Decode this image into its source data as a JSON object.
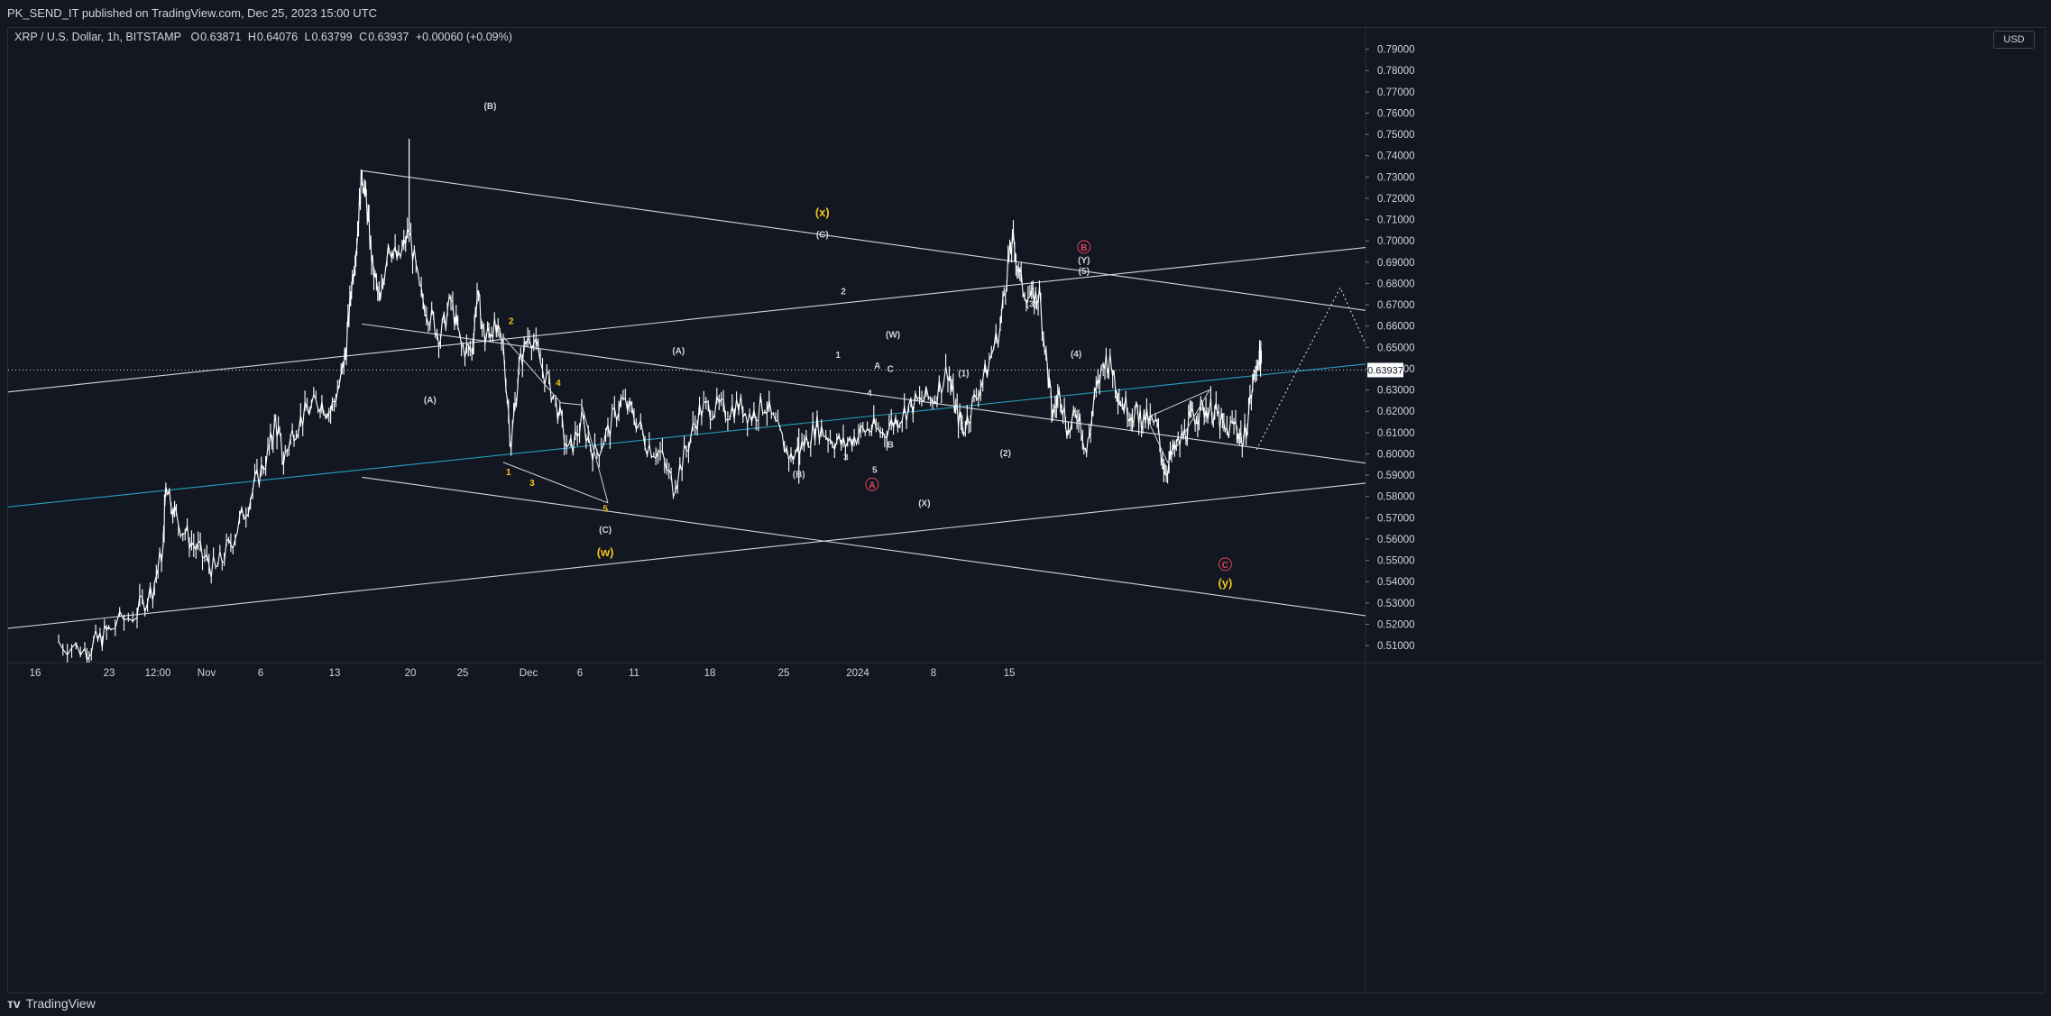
{
  "header": {
    "publisher": "PK_SEND_IT published on TradingView.com, Dec 25, 2023 15:00 UTC"
  },
  "legend": {
    "symbol": "XRP / U.S. Dollar, 1h, BITSTAMP",
    "open_label": "O",
    "open": "0.63871",
    "high_label": "H",
    "high": "0.64076",
    "low_label": "L",
    "low": "0.63799",
    "close_label": "C",
    "close": "0.63937",
    "change": "+0.00060 (+0.09%)"
  },
  "currency": "USD",
  "price_tag": "0.63937",
  "footer": {
    "brand": "TradingView",
    "logo": "tradingview-logo-icon"
  },
  "colors": {
    "background": "#131722",
    "teal_line": "#26a0c0",
    "wave_yellow": "#f0c419",
    "wave_red": "#e0455a",
    "lines": "#d1d4dc"
  },
  "chart_data": {
    "type": "candlestick",
    "symbol": "XRP / U.S. Dollar",
    "interval": "1h",
    "exchange": "BITSTAMP",
    "ylim": [
      0.505,
      0.8
    ],
    "y_ticks": [
      "0.51000",
      "0.52000",
      "0.53000",
      "0.54000",
      "0.55000",
      "0.56000",
      "0.57000",
      "0.58000",
      "0.59000",
      "0.60000",
      "0.61000",
      "0.62000",
      "0.63000",
      "0.64000",
      "0.65000",
      "0.66000",
      "0.67000",
      "0.68000",
      "0.69000",
      "0.70000",
      "0.71000",
      "0.72000",
      "0.73000",
      "0.74000",
      "0.75000",
      "0.76000",
      "0.77000",
      "0.78000",
      "0.79000"
    ],
    "x_ticks": [
      "16",
      "23",
      "12:00",
      "Nov",
      "6",
      "13",
      "20",
      "25",
      "Dec",
      "6",
      "11",
      "18",
      "25",
      "2024",
      "8",
      "15"
    ],
    "current_price": 0.63937,
    "price_path": [
      [
        -3.0,
        0.512
      ],
      [
        -2.0,
        0.508
      ],
      [
        -1.5,
        0.512
      ],
      [
        -1.0,
        0.518
      ],
      [
        0.0,
        0.526
      ],
      [
        0.6,
        0.537
      ],
      [
        1.0,
        0.556
      ],
      [
        1.1,
        0.588
      ],
      [
        1.5,
        0.57
      ],
      [
        2.0,
        0.56
      ],
      [
        2.5,
        0.552
      ],
      [
        3.0,
        0.545
      ],
      [
        3.5,
        0.556
      ],
      [
        4.0,
        0.57
      ],
      [
        4.5,
        0.585
      ],
      [
        5.0,
        0.6
      ],
      [
        5.3,
        0.615
      ],
      [
        5.6,
        0.597
      ],
      [
        6.0,
        0.612
      ],
      [
        6.5,
        0.62
      ],
      [
        7.0,
        0.625
      ],
      [
        7.4,
        0.62
      ],
      [
        7.8,
        0.635
      ],
      [
        8.0,
        0.65
      ],
      [
        8.2,
        0.68
      ],
      [
        8.4,
        0.7
      ],
      [
        8.6,
        0.733
      ],
      [
        8.8,
        0.715
      ],
      [
        9.0,
        0.688
      ],
      [
        9.3,
        0.67
      ],
      [
        9.6,
        0.7
      ],
      [
        10.0,
        0.69
      ],
      [
        10.4,
        0.705
      ],
      [
        10.8,
        0.676
      ],
      [
        11.2,
        0.665
      ],
      [
        11.6,
        0.655
      ],
      [
        12.0,
        0.672
      ],
      [
        12.4,
        0.65
      ],
      [
        12.8,
        0.648
      ],
      [
        13.0,
        0.675
      ],
      [
        13.3,
        0.654
      ],
      [
        13.6,
        0.66
      ],
      [
        14.0,
        0.65
      ],
      [
        14.3,
        0.605
      ],
      [
        14.6,
        0.64
      ],
      [
        15.0,
        0.658
      ],
      [
        15.5,
        0.64
      ],
      [
        16.0,
        0.625
      ],
      [
        16.5,
        0.6
      ],
      [
        17.0,
        0.615
      ],
      [
        17.5,
        0.6
      ],
      [
        18.0,
        0.61
      ],
      [
        18.5,
        0.625
      ],
      [
        19.0,
        0.618
      ],
      [
        19.5,
        0.605
      ],
      [
        20.0,
        0.6
      ],
      [
        20.5,
        0.585
      ],
      [
        21.0,
        0.602
      ],
      [
        21.5,
        0.62
      ],
      [
        22.0,
        0.622
      ],
      [
        22.5,
        0.62
      ],
      [
        23.0,
        0.623
      ],
      [
        23.5,
        0.618
      ],
      [
        24.0,
        0.624
      ],
      [
        24.5,
        0.61
      ],
      [
        25.0,
        0.598
      ],
      [
        25.5,
        0.605
      ],
      [
        26.0,
        0.613
      ],
      [
        26.5,
        0.608
      ],
      [
        27.0,
        0.604
      ],
      [
        27.5,
        0.609
      ],
      [
        28.0,
        0.612
      ],
      [
        28.5,
        0.61
      ],
      [
        29.0,
        0.616
      ],
      [
        29.5,
        0.622
      ],
      [
        30.0,
        0.625
      ],
      [
        30.5,
        0.627
      ],
      [
        31.0,
        0.64
      ],
      [
        31.3,
        0.62
      ],
      [
        31.6,
        0.612
      ],
      [
        32.0,
        0.625
      ],
      [
        32.5,
        0.64
      ],
      [
        33.0,
        0.66
      ],
      [
        33.3,
        0.69
      ],
      [
        33.5,
        0.7
      ],
      [
        33.8,
        0.68
      ],
      [
        34.2,
        0.672
      ],
      [
        34.5,
        0.675
      ],
      [
        34.8,
        0.64
      ],
      [
        35.0,
        0.618
      ],
      [
        35.3,
        0.63
      ],
      [
        35.6,
        0.61
      ],
      [
        36.0,
        0.62
      ],
      [
        36.3,
        0.6
      ],
      [
        36.6,
        0.625
      ],
      [
        37.0,
        0.645
      ],
      [
        37.3,
        0.64
      ],
      [
        37.6,
        0.625
      ],
      [
        38.0,
        0.62
      ],
      [
        38.3,
        0.618
      ],
      [
        38.6,
        0.616
      ],
      [
        39.0,
        0.612
      ],
      [
        39.3,
        0.592
      ],
      [
        39.6,
        0.6
      ],
      [
        40.0,
        0.608
      ],
      [
        40.3,
        0.616
      ],
      [
        40.6,
        0.62
      ],
      [
        41.0,
        0.622
      ],
      [
        41.3,
        0.618
      ],
      [
        41.6,
        0.61
      ],
      [
        42.0,
        0.614
      ],
      [
        42.3,
        0.605
      ],
      [
        42.6,
        0.628
      ],
      [
        42.9,
        0.648
      ],
      [
        43.0,
        0.64
      ]
    ],
    "trendlines": [
      {
        "name": "channel-upper-descending",
        "color": "#d1d4dc",
        "x1": 8.6,
        "y1": 0.733,
        "x2": 70,
        "y2": 0.628
      },
      {
        "name": "channel-middle-descending",
        "color": "#d1d4dc",
        "x1": 8.6,
        "y1": 0.661,
        "x2": 70,
        "y2": 0.5565
      },
      {
        "name": "channel-lower-descending",
        "color": "#d1d4dc",
        "x1": 8.6,
        "y1": 0.589,
        "x2": 70,
        "y2": 0.485
      },
      {
        "name": "ascending-upper",
        "color": "#d1d4dc",
        "x1": -5,
        "y1": 0.629,
        "x2": 70,
        "y2": 0.727
      },
      {
        "name": "ascending-lower",
        "color": "#d1d4dc",
        "x1": -5,
        "y1": 0.518,
        "x2": 70,
        "y2": 0.6165
      },
      {
        "name": "ascending-teal",
        "color": "#26a0c0",
        "x1": -5,
        "y1": 0.575,
        "x2": 70,
        "y2": 0.672
      }
    ],
    "wave_segments": [
      [
        [
          14.0,
          0.655
        ],
        [
          16.2,
          0.624
        ],
        [
          17.0,
          0.623
        ],
        [
          18.0,
          0.577
        ]
      ],
      [
        [
          14.0,
          0.596
        ],
        [
          18.0,
          0.577
        ]
      ],
      [
        [
          38.6,
          0.617
        ],
        [
          41.0,
          0.63
        ],
        [
          39.4,
          0.596
        ],
        [
          38.6,
          0.617
        ]
      ]
    ],
    "projection": [
      [
        42.8,
        0.602
      ],
      [
        44.5,
        0.643
      ],
      [
        46.0,
        0.678
      ],
      [
        47.5,
        0.637
      ],
      [
        48.3,
        0.658
      ],
      [
        50.5,
        0.587
      ],
      [
        51.6,
        0.601
      ],
      [
        53.5,
        0.552
      ]
    ],
    "labels": [
      {
        "text": "(B)",
        "x": 13.5,
        "y": 0.762,
        "color": "#d1d4dc"
      },
      {
        "text": "(A)",
        "x": 11.2,
        "y": 0.624,
        "color": "#d1d4dc"
      },
      {
        "text": "1",
        "x": 14.2,
        "y": 0.59,
        "color": "#f0c419"
      },
      {
        "text": "2",
        "x": 14.3,
        "y": 0.661,
        "color": "#f0c419"
      },
      {
        "text": "3",
        "x": 15.1,
        "y": 0.585,
        "color": "#f0c419"
      },
      {
        "text": "4",
        "x": 16.1,
        "y": 0.632,
        "color": "#f0c419"
      },
      {
        "text": "5",
        "x": 17.9,
        "y": 0.573,
        "color": "#f0c419"
      },
      {
        "text": "(C)",
        "x": 17.9,
        "y": 0.563,
        "color": "#d1d4dc"
      },
      {
        "text": "(w)",
        "x": 17.9,
        "y": 0.552,
        "color": "#f0c419",
        "size": 13
      },
      {
        "text": "(A)",
        "x": 20.7,
        "y": 0.647,
        "color": "#d1d4dc"
      },
      {
        "text": "(B)",
        "x": 25.3,
        "y": 0.589,
        "color": "#d1d4dc"
      },
      {
        "text": "(x)",
        "x": 26.2,
        "y": 0.7115,
        "color": "#f0c419",
        "size": 13
      },
      {
        "text": "(C)",
        "x": 26.2,
        "y": 0.7015,
        "color": "#d1d4dc"
      },
      {
        "text": "2",
        "x": 27.0,
        "y": 0.675,
        "color": "#d1d4dc"
      },
      {
        "text": "1",
        "x": 26.8,
        "y": 0.645,
        "color": "#d1d4dc"
      },
      {
        "text": "3",
        "x": 27.1,
        "y": 0.597,
        "color": "#d1d4dc"
      },
      {
        "text": "4",
        "x": 28.0,
        "y": 0.627,
        "color": "#d1d4dc"
      },
      {
        "text": "5",
        "x": 28.2,
        "y": 0.591,
        "color": "#d1d4dc"
      },
      {
        "text": "A",
        "x": 28.3,
        "y": 0.64,
        "color": "#d1d4dc"
      },
      {
        "text": "B",
        "x": 28.8,
        "y": 0.603,
        "color": "#d1d4dc"
      },
      {
        "text": "C",
        "x": 28.8,
        "y": 0.6385,
        "color": "#d1d4dc"
      },
      {
        "text": "(W)",
        "x": 28.9,
        "y": 0.6545,
        "color": "#d1d4dc"
      },
      {
        "text": "A",
        "x": 28.1,
        "y": 0.584,
        "color": "#e0455a",
        "circle": true
      },
      {
        "text": "(X)",
        "x": 30.1,
        "y": 0.5755,
        "color": "#d1d4dc"
      },
      {
        "text": "(1)",
        "x": 31.6,
        "y": 0.6365,
        "color": "#d1d4dc"
      },
      {
        "text": "(2)",
        "x": 33.2,
        "y": 0.599,
        "color": "#d1d4dc"
      },
      {
        "text": "(3)",
        "x": 34.2,
        "y": 0.669,
        "color": "#d1d4dc"
      },
      {
        "text": "(4)",
        "x": 35.9,
        "y": 0.6455,
        "color": "#d1d4dc"
      },
      {
        "text": "B",
        "x": 36.2,
        "y": 0.6955,
        "color": "#e0455a",
        "circle": true
      },
      {
        "text": "(Y)",
        "x": 36.2,
        "y": 0.6895,
        "color": "#d1d4dc"
      },
      {
        "text": "(5)",
        "x": 36.2,
        "y": 0.6845,
        "color": "#d1d4dc"
      },
      {
        "text": "C",
        "x": 41.6,
        "y": 0.5465,
        "color": "#e0455a",
        "circle": true
      },
      {
        "text": "(y)",
        "x": 41.6,
        "y": 0.5375,
        "color": "#f0c419",
        "size": 13
      }
    ]
  }
}
